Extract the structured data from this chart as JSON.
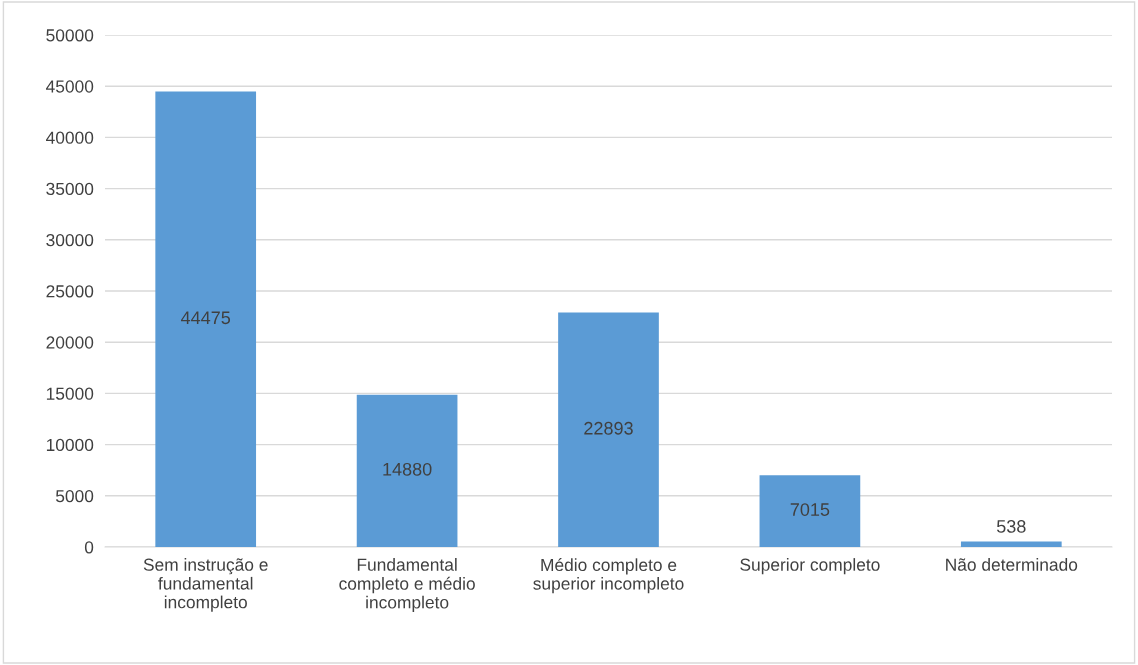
{
  "chart_data": {
    "type": "bar",
    "categories": [
      "Sem instrução e\nfundamental\nincompleto",
      "Fundamental\ncompleto e médio\nincompleto",
      "Médio completo e\nsuperior incompleto",
      "Superior completo",
      "Não determinado"
    ],
    "values": [
      44475,
      14880,
      22893,
      7015,
      538
    ],
    "color": "#5b9bd5",
    "ylim": [
      0,
      50000
    ],
    "yticks": [
      0,
      5000,
      10000,
      15000,
      20000,
      25000,
      30000,
      35000,
      40000,
      45000,
      50000
    ],
    "grid": "y",
    "data_labels": true
  }
}
